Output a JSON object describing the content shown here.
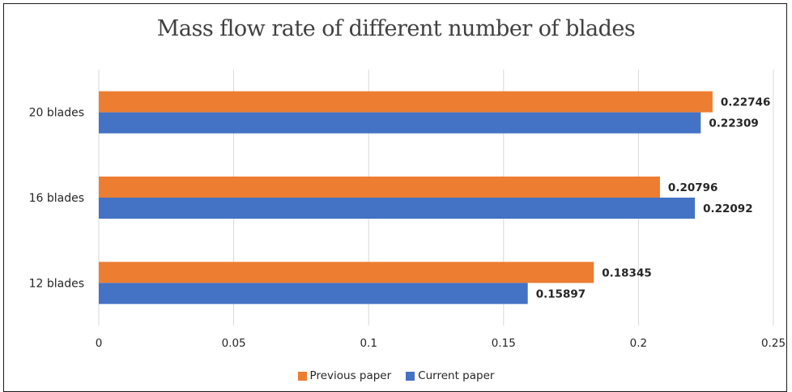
{
  "chart_data": {
    "type": "bar",
    "orientation": "horizontal",
    "title": "Mass flow rate of different number of blades",
    "categories": [
      "12 blades",
      "16 blades",
      "20 blades"
    ],
    "series": [
      {
        "name": "Current paper",
        "values": [
          0.15897,
          0.22092,
          0.22309
        ],
        "color": "#4472C4"
      },
      {
        "name": "Previous paper",
        "values": [
          0.18345,
          0.20796,
          0.22746
        ],
        "color": "#ED7D31"
      }
    ],
    "xlim": [
      0,
      0.25
    ],
    "xticks": [
      "0",
      "0.05",
      "0.1",
      "0.15",
      "0.2",
      "0.25"
    ],
    "grid": "vertical",
    "legend_position": "bottom",
    "legend_order": [
      "Previous paper",
      "Current paper"
    ]
  }
}
